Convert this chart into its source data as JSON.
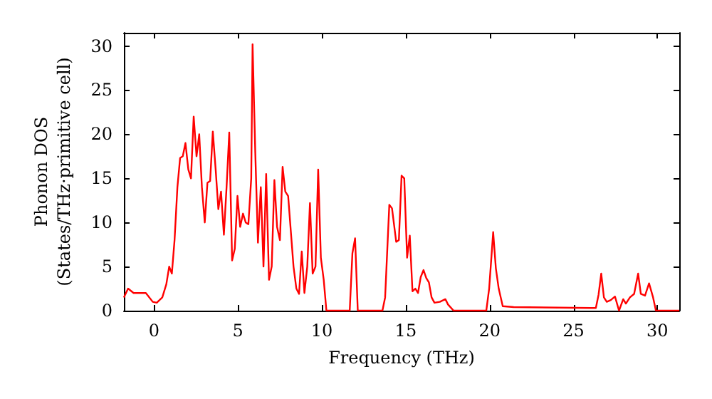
{
  "chart_data": {
    "type": "line",
    "xlabel": "Frequency (THz)",
    "ylabel": "Phonon DOS\n(States/THz·primitive cell)",
    "xlim": [
      -1.8,
      31.3
    ],
    "ylim": [
      0,
      31.5
    ],
    "xticks": [
      0,
      5,
      10,
      15,
      20,
      25,
      30
    ],
    "yticks": [
      0,
      5,
      10,
      15,
      20,
      25,
      30
    ],
    "grid": false,
    "marker": "none",
    "line_style": "solid",
    "x": [
      -1.8,
      -1.55,
      -1.22,
      -0.49,
      -0.08,
      0.16,
      0.49,
      0.73,
      0.9,
      1.06,
      1.22,
      1.39,
      1.55,
      1.71,
      1.87,
      2.04,
      2.2,
      2.36,
      2.53,
      2.69,
      2.85,
      3.02,
      3.18,
      3.34,
      3.5,
      3.67,
      3.83,
      3.99,
      4.16,
      4.32,
      4.48,
      4.65,
      4.81,
      4.97,
      5.13,
      5.3,
      5.46,
      5.62,
      5.79,
      5.87,
      6.03,
      6.19,
      6.36,
      6.52,
      6.68,
      6.85,
      7.01,
      7.17,
      7.33,
      7.5,
      7.66,
      7.82,
      7.99,
      8.15,
      8.31,
      8.48,
      8.64,
      8.8,
      8.96,
      9.13,
      9.29,
      9.45,
      9.62,
      9.78,
      9.94,
      10.11,
      10.27,
      10.84,
      11.66,
      11.82,
      11.98,
      12.14,
      13.61,
      13.77,
      14.02,
      14.18,
      14.43,
      14.59,
      14.75,
      14.91,
      15.08,
      15.24,
      15.4,
      15.57,
      15.73,
      15.89,
      16.06,
      16.22,
      16.38,
      16.54,
      16.71,
      17.03,
      17.36,
      17.52,
      17.85,
      19.8,
      19.97,
      20.21,
      20.37,
      20.54,
      20.78,
      21.43,
      26.0,
      26.33,
      26.49,
      26.65,
      26.81,
      26.98,
      27.22,
      27.47,
      27.71,
      27.96,
      28.12,
      28.36,
      28.61,
      28.85,
      29.01,
      29.26,
      29.5,
      29.74,
      29.91,
      31.3
    ],
    "series": [
      {
        "color": "#ff0000",
        "values": [
          1.5,
          2.5,
          2.0,
          2.0,
          1.0,
          0.9,
          1.5,
          3,
          5,
          4.2,
          8,
          14,
          17.3,
          17.5,
          19,
          16,
          15,
          22,
          17.5,
          20,
          14,
          10,
          14.5,
          14.7,
          20.3,
          16,
          11.5,
          13.5,
          8.6,
          14,
          20.2,
          5.7,
          7,
          13,
          9.5,
          11,
          10,
          9.8,
          15,
          30.2,
          18,
          7.7,
          14,
          5,
          15.5,
          3.5,
          5,
          14.8,
          9.5,
          8,
          16.3,
          13.5,
          13,
          9,
          5,
          2.5,
          1.9,
          6.7,
          2,
          5,
          12.2,
          4.2,
          5,
          16,
          6,
          3.5,
          0,
          0,
          0,
          6.5,
          8.2,
          0,
          0,
          1.5,
          12,
          11.6,
          7.8,
          8,
          15.3,
          15,
          6,
          8.5,
          2.2,
          2.5,
          2,
          3.8,
          4.6,
          3.7,
          3.2,
          1.5,
          0.9,
          1,
          1.3,
          0.7,
          0,
          0,
          2.5,
          8.9,
          4.8,
          2.5,
          0.5,
          0.4,
          0.3,
          0.3,
          1.8,
          4.2,
          1.5,
          1.0,
          1.2,
          1.6,
          0,
          1.3,
          0.8,
          1.5,
          1.9,
          4.2,
          1.9,
          1.7,
          3.1,
          1.5,
          0,
          0
        ]
      }
    ]
  }
}
